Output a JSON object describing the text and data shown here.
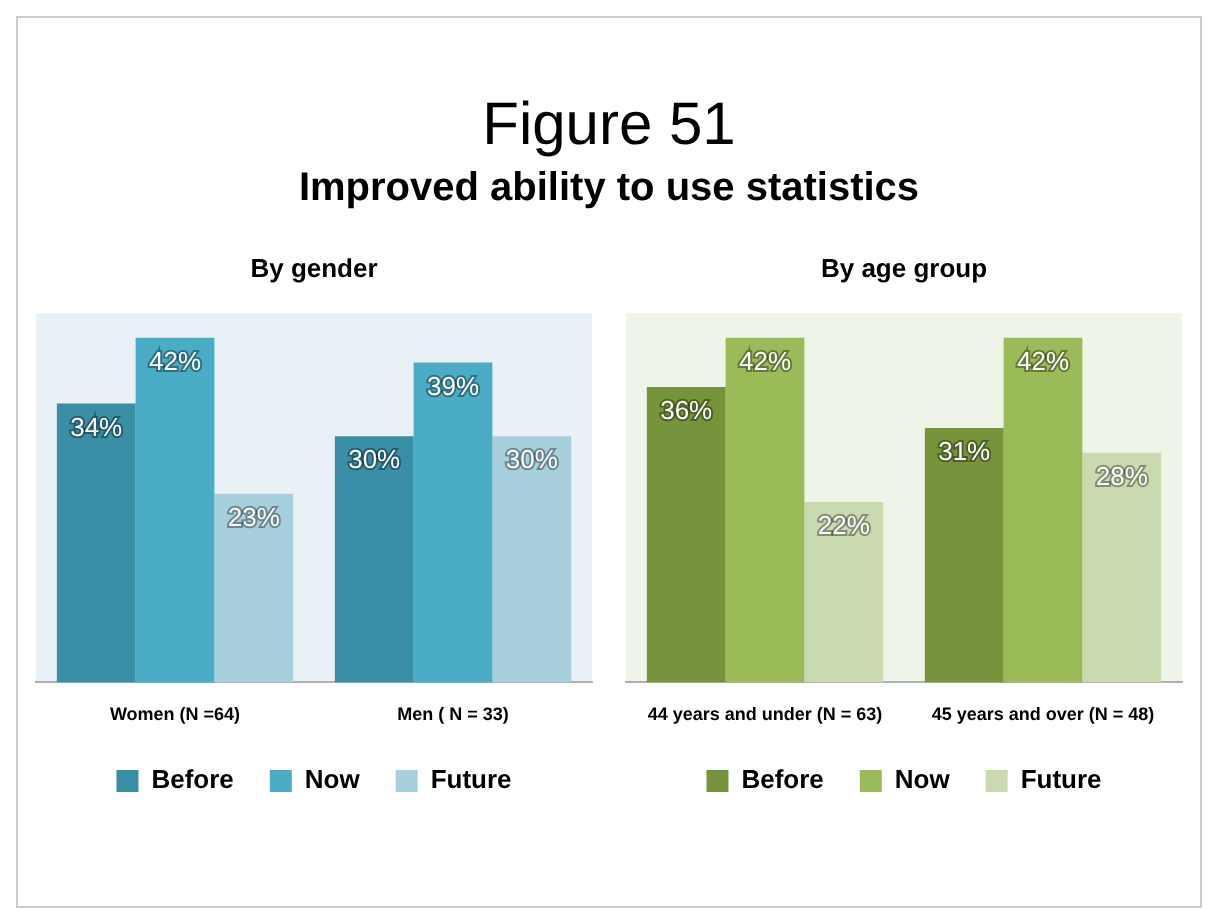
{
  "chart_data": [
    {
      "type": "bar",
      "title": "By gender",
      "annotations": [
        "Figure 51",
        "Improved ability to use statistics"
      ],
      "categories": [
        "Women (N =64)",
        "Men ( N = 33)"
      ],
      "tick_labels": "x",
      "legend": "bottom",
      "grid": false,
      "series": [
        {
          "name": "Before",
          "color": "#3a8ea6",
          "values": [
            34,
            30
          ],
          "value_labels": [
            "34%",
            "30%"
          ]
        },
        {
          "name": "Now",
          "color": "#4bacc6",
          "values": [
            42,
            39
          ],
          "value_labels": [
            "42%",
            "39%"
          ]
        },
        {
          "name": "Future",
          "color": "#a8cfdd",
          "values": [
            23,
            30
          ],
          "value_labels": [
            "23%",
            "30%"
          ]
        }
      ]
    },
    {
      "type": "bar",
      "title": "By age group",
      "categories": [
        "44 years and under (N = 63)",
        "45 years and over (N = 48)"
      ],
      "tick_labels": "x",
      "legend": "bottom",
      "grid": false,
      "series": [
        {
          "name": "Before",
          "color": "#77933c",
          "values": [
            36,
            31
          ],
          "value_labels": [
            "36%",
            "31%"
          ]
        },
        {
          "name": "Now",
          "color": "#9bbb59",
          "values": [
            42,
            42
          ],
          "value_labels": [
            "42%",
            "42%"
          ]
        },
        {
          "name": "Future",
          "color": "#c9d9b0",
          "values": [
            22,
            28
          ],
          "value_labels": [
            "22%",
            "28%"
          ]
        }
      ]
    }
  ]
}
